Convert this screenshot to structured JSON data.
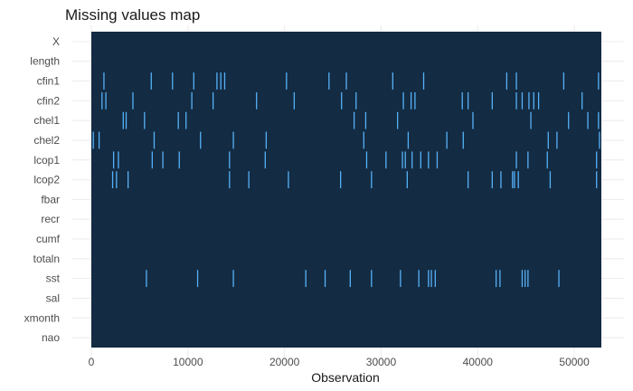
{
  "chart_data": {
    "type": "heatmap",
    "title": "Missing values map",
    "xlabel": "Observation",
    "ylabel": "",
    "xlim": [
      0,
      52800
    ],
    "x_ticks": [
      0,
      10000,
      20000,
      30000,
      40000,
      50000
    ],
    "x_tick_labels": [
      "0",
      "10000",
      "20000",
      "30000",
      "40000",
      "50000"
    ],
    "grid": true,
    "legend": "none",
    "colors": {
      "present": "#132b43",
      "missing": "#56b1f7",
      "grid": "#ebebeb",
      "background": "#ffffff"
    },
    "variables": [
      {
        "name": "X",
        "missing_at": []
      },
      {
        "name": "length",
        "missing_at": []
      },
      {
        "name": "cfin1",
        "missing_at": [
          1300,
          6200,
          8400,
          10600,
          13000,
          13400,
          13800,
          20200,
          24600,
          26400,
          31200,
          34400,
          43000,
          44000,
          48900,
          52500
        ]
      },
      {
        "name": "cfin2",
        "missing_at": [
          1100,
          1500,
          4300,
          10400,
          12600,
          17100,
          21000,
          25900,
          27400,
          32300,
          33100,
          33500,
          38400,
          39000,
          41500,
          44000,
          44600,
          45300,
          45800,
          46300,
          50800
        ]
      },
      {
        "name": "chel1",
        "missing_at": [
          3300,
          3600,
          5500,
          9000,
          9800,
          27200,
          28400,
          31700,
          39500,
          45500,
          49400,
          51400,
          52500
        ]
      },
      {
        "name": "chel2",
        "missing_at": [
          200,
          800,
          6500,
          11300,
          14700,
          18100,
          28200,
          32800,
          36800,
          38500,
          47300,
          48200,
          52600
        ]
      },
      {
        "name": "lcop1",
        "missing_at": [
          2300,
          2800,
          6300,
          7400,
          9100,
          14300,
          18000,
          28500,
          30500,
          32200,
          32500,
          33200,
          34100,
          34900,
          35800,
          44000,
          45200,
          47200,
          52300
        ]
      },
      {
        "name": "lcop2",
        "missing_at": [
          2200,
          2600,
          3800,
          14300,
          16300,
          20400,
          25800,
          29000,
          32700,
          39000,
          41500,
          42400,
          43600,
          43800,
          44200,
          47500,
          52300
        ]
      },
      {
        "name": "fbar",
        "missing_at": []
      },
      {
        "name": "recr",
        "missing_at": []
      },
      {
        "name": "cumf",
        "missing_at": []
      },
      {
        "name": "totaln",
        "missing_at": []
      },
      {
        "name": "sst",
        "missing_at": [
          5700,
          11000,
          14700,
          22200,
          24200,
          26800,
          29000,
          32000,
          33900,
          34900,
          35200,
          35600,
          41900,
          42300,
          44600,
          44900,
          45200,
          48400
        ]
      },
      {
        "name": "sal",
        "missing_at": []
      },
      {
        "name": "xmonth",
        "missing_at": []
      },
      {
        "name": "nao",
        "missing_at": []
      }
    ]
  }
}
